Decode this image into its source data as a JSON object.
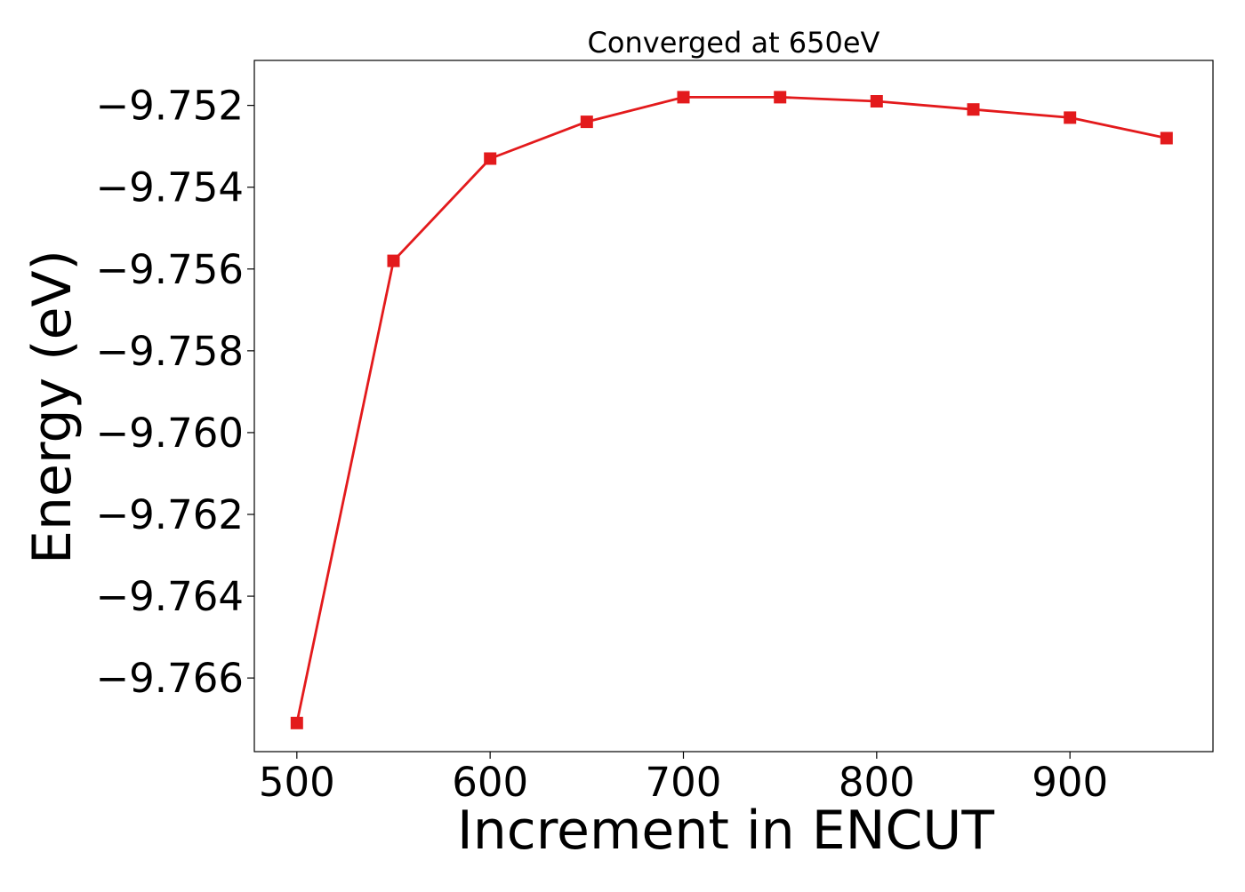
{
  "chart_data": {
    "type": "line",
    "title": "Converged at 650eV",
    "xlabel": "Increment in ENCUT",
    "ylabel": "Energy (eV)",
    "x": [
      500,
      550,
      600,
      650,
      700,
      750,
      800,
      850,
      900,
      950
    ],
    "series": [
      {
        "values": [
          -9.7671,
          -9.7558,
          -9.7533,
          -9.7524,
          -9.7518,
          -9.7518,
          -9.7519,
          -9.7521,
          -9.7523,
          -9.7528
        ],
        "color": "#e31a1c",
        "marker": "square"
      }
    ],
    "xlim": [
      478,
      974
    ],
    "ylim": [
      -9.7678,
      -9.7509
    ],
    "xticks": [
      500,
      600,
      700,
      800,
      900
    ],
    "xtick_labels": [
      "500",
      "600",
      "700",
      "800",
      "900"
    ],
    "yticks": [
      -9.766,
      -9.764,
      -9.762,
      -9.76,
      -9.758,
      -9.756,
      -9.754,
      -9.752
    ],
    "ytick_labels": [
      "−9.766",
      "−9.764",
      "−9.762",
      "−9.760",
      "−9.758",
      "−9.756",
      "−9.754",
      "−9.752"
    ],
    "grid": false,
    "legend": "none"
  }
}
